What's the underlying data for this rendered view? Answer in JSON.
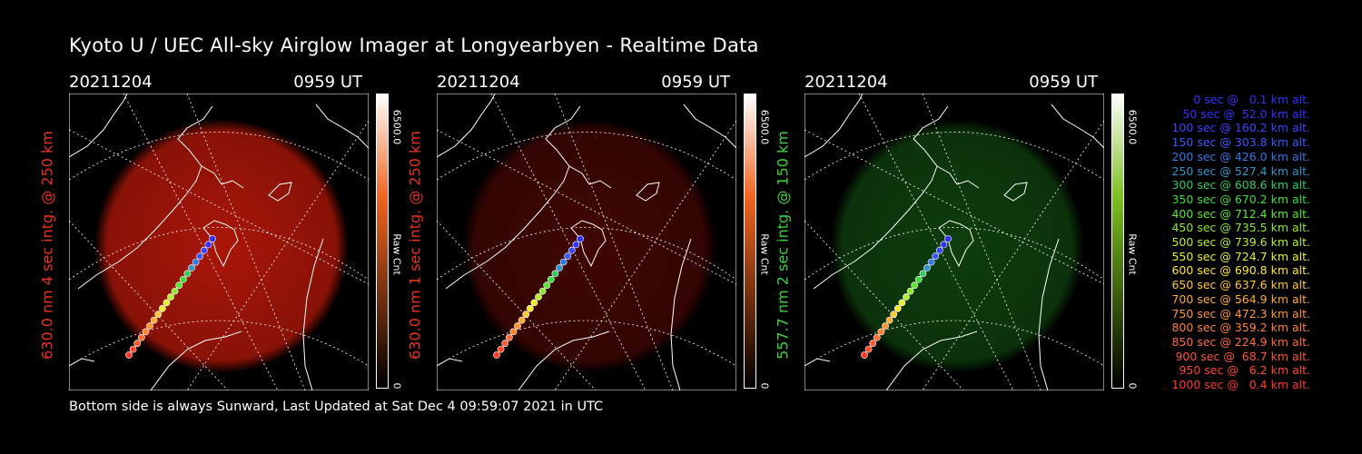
{
  "title": "Kyoto U / UEC All-sky Airglow Imager at Longyearbyen - Realtime Data",
  "footer": "Bottom side is always Sunward, Last Updated at Sat Dec  4 09:59:07 2021 in UTC",
  "panels": [
    {
      "date": "20211204",
      "time": "0959 UT",
      "ylabel": "630.0 nm 4 sec intg. @ 250 km",
      "label_color": "#e8341a",
      "glow_color": "#c81a0a",
      "glow_opacity": 0.85,
      "cbar_max": "6500.0",
      "cbar_min": "0",
      "cbar_unit": "Raw Cnt",
      "cbar_top": "#ffffff",
      "cbar_mid": "#f06420",
      "cbar_bottom": "#000000"
    },
    {
      "date": "20211204",
      "time": "0959 UT",
      "ylabel": "630.0 nm 1 sec intg. @ 250 km",
      "label_color": "#e8341a",
      "glow_color": "#a01008",
      "glow_opacity": 0.4,
      "cbar_max": "6500.0",
      "cbar_min": "0",
      "cbar_unit": "Raw Cnt",
      "cbar_top": "#ffffff",
      "cbar_mid": "#f06420",
      "cbar_bottom": "#000000"
    },
    {
      "date": "20211204",
      "time": "0959 UT",
      "ylabel": "557.7 nm 2 sec intg. @ 150 km",
      "label_color": "#3cd23c",
      "glow_color": "#1f8a1f",
      "glow_opacity": 0.45,
      "cbar_max": "6500.0",
      "cbar_min": "0",
      "cbar_unit": "Raw Cnt",
      "cbar_top": "#ffffff",
      "cbar_mid": "#7cc020",
      "cbar_bottom": "#000000"
    }
  ],
  "legend": [
    {
      "text": "0 sec @   0.1 km alt.",
      "color": "#3232ff"
    },
    {
      "text": "50 sec @  52.0 km alt.",
      "color": "#3232ff"
    },
    {
      "text": "100 sec @ 160.2 km alt.",
      "color": "#3a46ff"
    },
    {
      "text": "150 sec @ 303.8 km alt.",
      "color": "#3a5aff"
    },
    {
      "text": "200 sec @ 426.0 km alt.",
      "color": "#3278e6"
    },
    {
      "text": "250 sec @ 527.4 km alt.",
      "color": "#3296c8"
    },
    {
      "text": "300 sec @ 608.6 km alt.",
      "color": "#32c864"
    },
    {
      "text": "350 sec @ 670.2 km alt.",
      "color": "#3cdc3c"
    },
    {
      "text": "400 sec @ 712.4 km alt.",
      "color": "#5ae632"
    },
    {
      "text": "450 sec @ 735.5 km alt.",
      "color": "#8ce632"
    },
    {
      "text": "500 sec @ 739.6 km alt.",
      "color": "#b4f032"
    },
    {
      "text": "550 sec @ 724.7 km alt.",
      "color": "#e6f032"
    },
    {
      "text": "600 sec @ 690.8 km alt.",
      "color": "#ffe632"
    },
    {
      "text": "650 sec @ 637.6 km alt.",
      "color": "#ffc832"
    },
    {
      "text": "700 sec @ 564.9 km alt.",
      "color": "#ffaa32"
    },
    {
      "text": "750 sec @ 472.3 km alt.",
      "color": "#ff9632"
    },
    {
      "text": "800 sec @ 359.2 km alt.",
      "color": "#ff8232"
    },
    {
      "text": "850 sec @ 224.9 km alt.",
      "color": "#ff6e32"
    },
    {
      "text": "900 sec @  68.7 km alt.",
      "color": "#ff5a32"
    },
    {
      "text": "950 sec @   6.2 km alt.",
      "color": "#ff4a2a"
    },
    {
      "text": "1000 sec @   0.4 km alt.",
      "color": "#ff3c28"
    }
  ]
}
